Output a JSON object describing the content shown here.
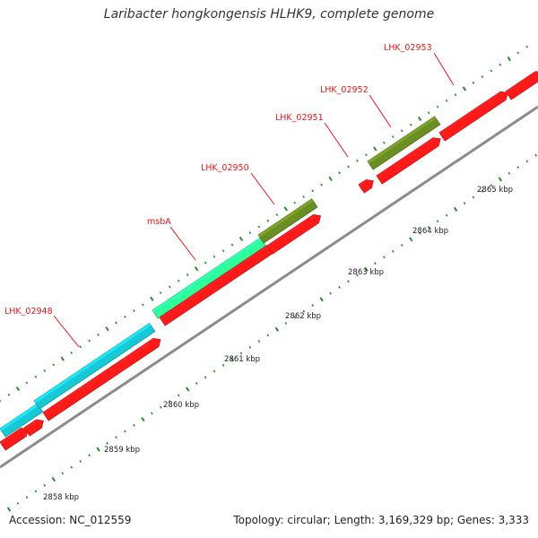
{
  "title": "Laribacter hongkongensis HLHK9, complete genome",
  "footer": {
    "accession": "Accession: NC_012559",
    "summary": "Topology: circular; Length: 3,169,329 bp; Genes: 3,333"
  },
  "colors": {
    "cds_red": "#ff1a1a",
    "cyan": "#17c9d6",
    "mint": "#2dff9a",
    "olive": "#6b8e23",
    "backbone": "#8c8c8c",
    "tick_green": "#2e8b2e",
    "label_red": "#e8151b"
  },
  "scale": {
    "labels": [
      {
        "kbp": 2858,
        "text": "2858 kbp"
      },
      {
        "kbp": 2859,
        "text": "2859 kbp"
      },
      {
        "kbp": 2860,
        "text": "2860 kbp"
      },
      {
        "kbp": 2861,
        "text": "2861 kbp"
      },
      {
        "kbp": 2862,
        "text": "2862 kbp"
      },
      {
        "kbp": 2863,
        "text": "2863 kbp"
      },
      {
        "kbp": 2864,
        "text": "2864 kbp"
      },
      {
        "kbp": 2865,
        "text": "2865 kbp"
      }
    ]
  },
  "genes": [
    {
      "name": "LHK_02948",
      "color": "cyan"
    },
    {
      "name": "msbA",
      "color": "mint"
    },
    {
      "name": "LHK_02950",
      "color": "olive"
    },
    {
      "name": "LHK_02951",
      "color": "cds_red"
    },
    {
      "name": "LHK_02952",
      "color": "olive"
    },
    {
      "name": "LHK_02953",
      "color": "cds_red"
    }
  ]
}
